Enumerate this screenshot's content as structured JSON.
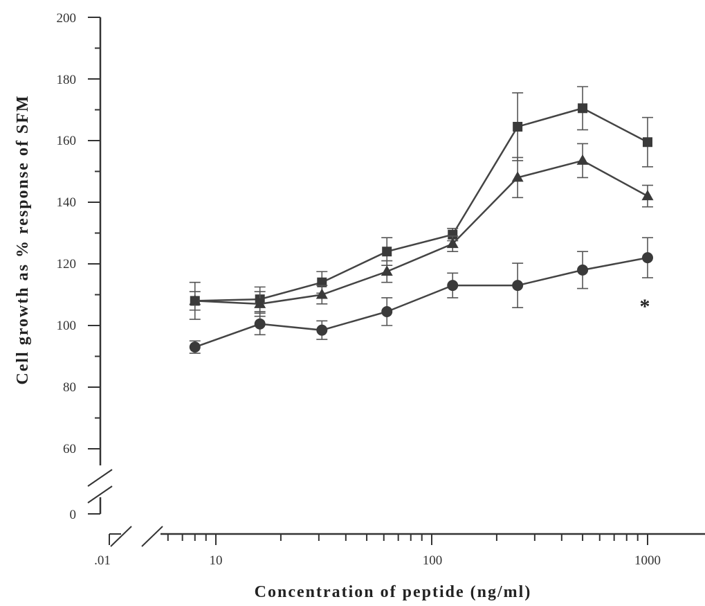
{
  "chart_data": {
    "type": "line",
    "xlabel": "Concentration of peptide (ng/ml)",
    "ylabel": "Cell growth as % response of SFM",
    "x_scale": "log",
    "xlim": [
      6,
      2000
    ],
    "ylim": [
      0,
      200
    ],
    "y_axis_break": "between 0 and 60",
    "x_axis_break": "between .01 and 10",
    "x_ticks": [
      ".01",
      "10",
      "100",
      "1000"
    ],
    "y_ticks": [
      "0",
      "60",
      "80",
      "100",
      "120",
      "140",
      "160",
      "180",
      "200"
    ],
    "x": [
      8,
      16,
      31,
      62,
      125,
      250,
      500,
      1000
    ],
    "series": [
      {
        "marker": "square",
        "values": [
          108,
          108.5,
          114,
          124,
          129.5,
          164.5,
          170.5,
          159.5
        ],
        "errors": [
          6,
          4,
          3.5,
          4.5,
          2,
          11,
          7,
          8
        ],
        "color": "#444444"
      },
      {
        "marker": "triangle",
        "values": [
          108,
          107,
          110,
          117.5,
          126.5,
          148,
          153.5,
          142
        ],
        "errors": [
          3,
          4,
          3,
          3.5,
          2.5,
          6.5,
          5.5,
          3.5
        ],
        "color": "#444444"
      },
      {
        "marker": "circle",
        "values": [
          93,
          100.5,
          98.5,
          104.5,
          113,
          113,
          118,
          122
        ],
        "errors": [
          2,
          3.5,
          3,
          4.5,
          4,
          7.2,
          6,
          6.5
        ],
        "color": "#444444"
      }
    ],
    "annotations": [
      {
        "text": "*",
        "x": 1000,
        "y": 107
      }
    ],
    "grid": false,
    "legend": "none"
  }
}
